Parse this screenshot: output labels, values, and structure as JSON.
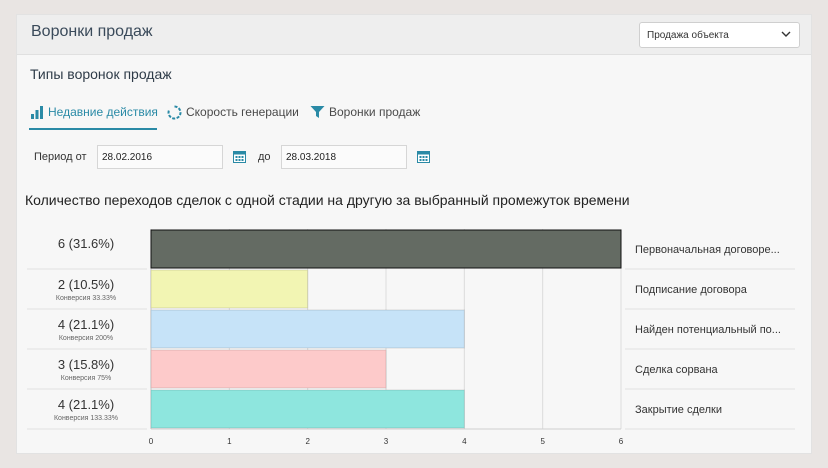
{
  "header": {
    "title": "Воронки продаж"
  },
  "select": {
    "value": "Продажа объекта"
  },
  "section": {
    "title": "Типы воронок продаж"
  },
  "tabs": [
    {
      "label": "Недавние действия",
      "icon": "bar-chart-icon",
      "active": true
    },
    {
      "label": "Скорость генерации",
      "icon": "spinner-icon",
      "active": false
    },
    {
      "label": "Воронки продаж",
      "icon": "funnel-icon",
      "active": false
    }
  ],
  "period": {
    "from_label": "Период от",
    "from_value": "28.02.2016",
    "to_label": "до",
    "to_value": "28.03.2018"
  },
  "colors": {
    "accent": "#2a8aa6"
  },
  "chart_data": {
    "type": "bar",
    "orientation": "horizontal",
    "title": "Количество переходов сделок с одной стадии на другую за выбранный промежуток времени",
    "xlim": [
      0,
      6
    ],
    "x_ticks": [
      "0",
      "1",
      "2",
      "3",
      "4",
      "5",
      "6"
    ],
    "grid": true,
    "rows": [
      {
        "stage": "Первоначальная договоре...",
        "value": 6,
        "label": "6 (31.6%)",
        "conversion": "",
        "color": "#646b63"
      },
      {
        "stage": "Подписание договора",
        "value": 2,
        "label": "2 (10.5%)",
        "conversion": "Конверсия 33.33%",
        "color": "#f2f5b3"
      },
      {
        "stage": "Найден потенциальный по...",
        "value": 4,
        "label": "4 (21.1%)",
        "conversion": "Конверсия 200%",
        "color": "#c6e3f8"
      },
      {
        "stage": "Сделка сорвана",
        "value": 3,
        "label": "3 (15.8%)",
        "conversion": "Конверсия 75%",
        "color": "#fdcaca"
      },
      {
        "stage": "Закрытие сделки",
        "value": 4,
        "label": "4 (21.1%)",
        "conversion": "Конверсия 133.33%",
        "color": "#8ee6de"
      }
    ]
  }
}
